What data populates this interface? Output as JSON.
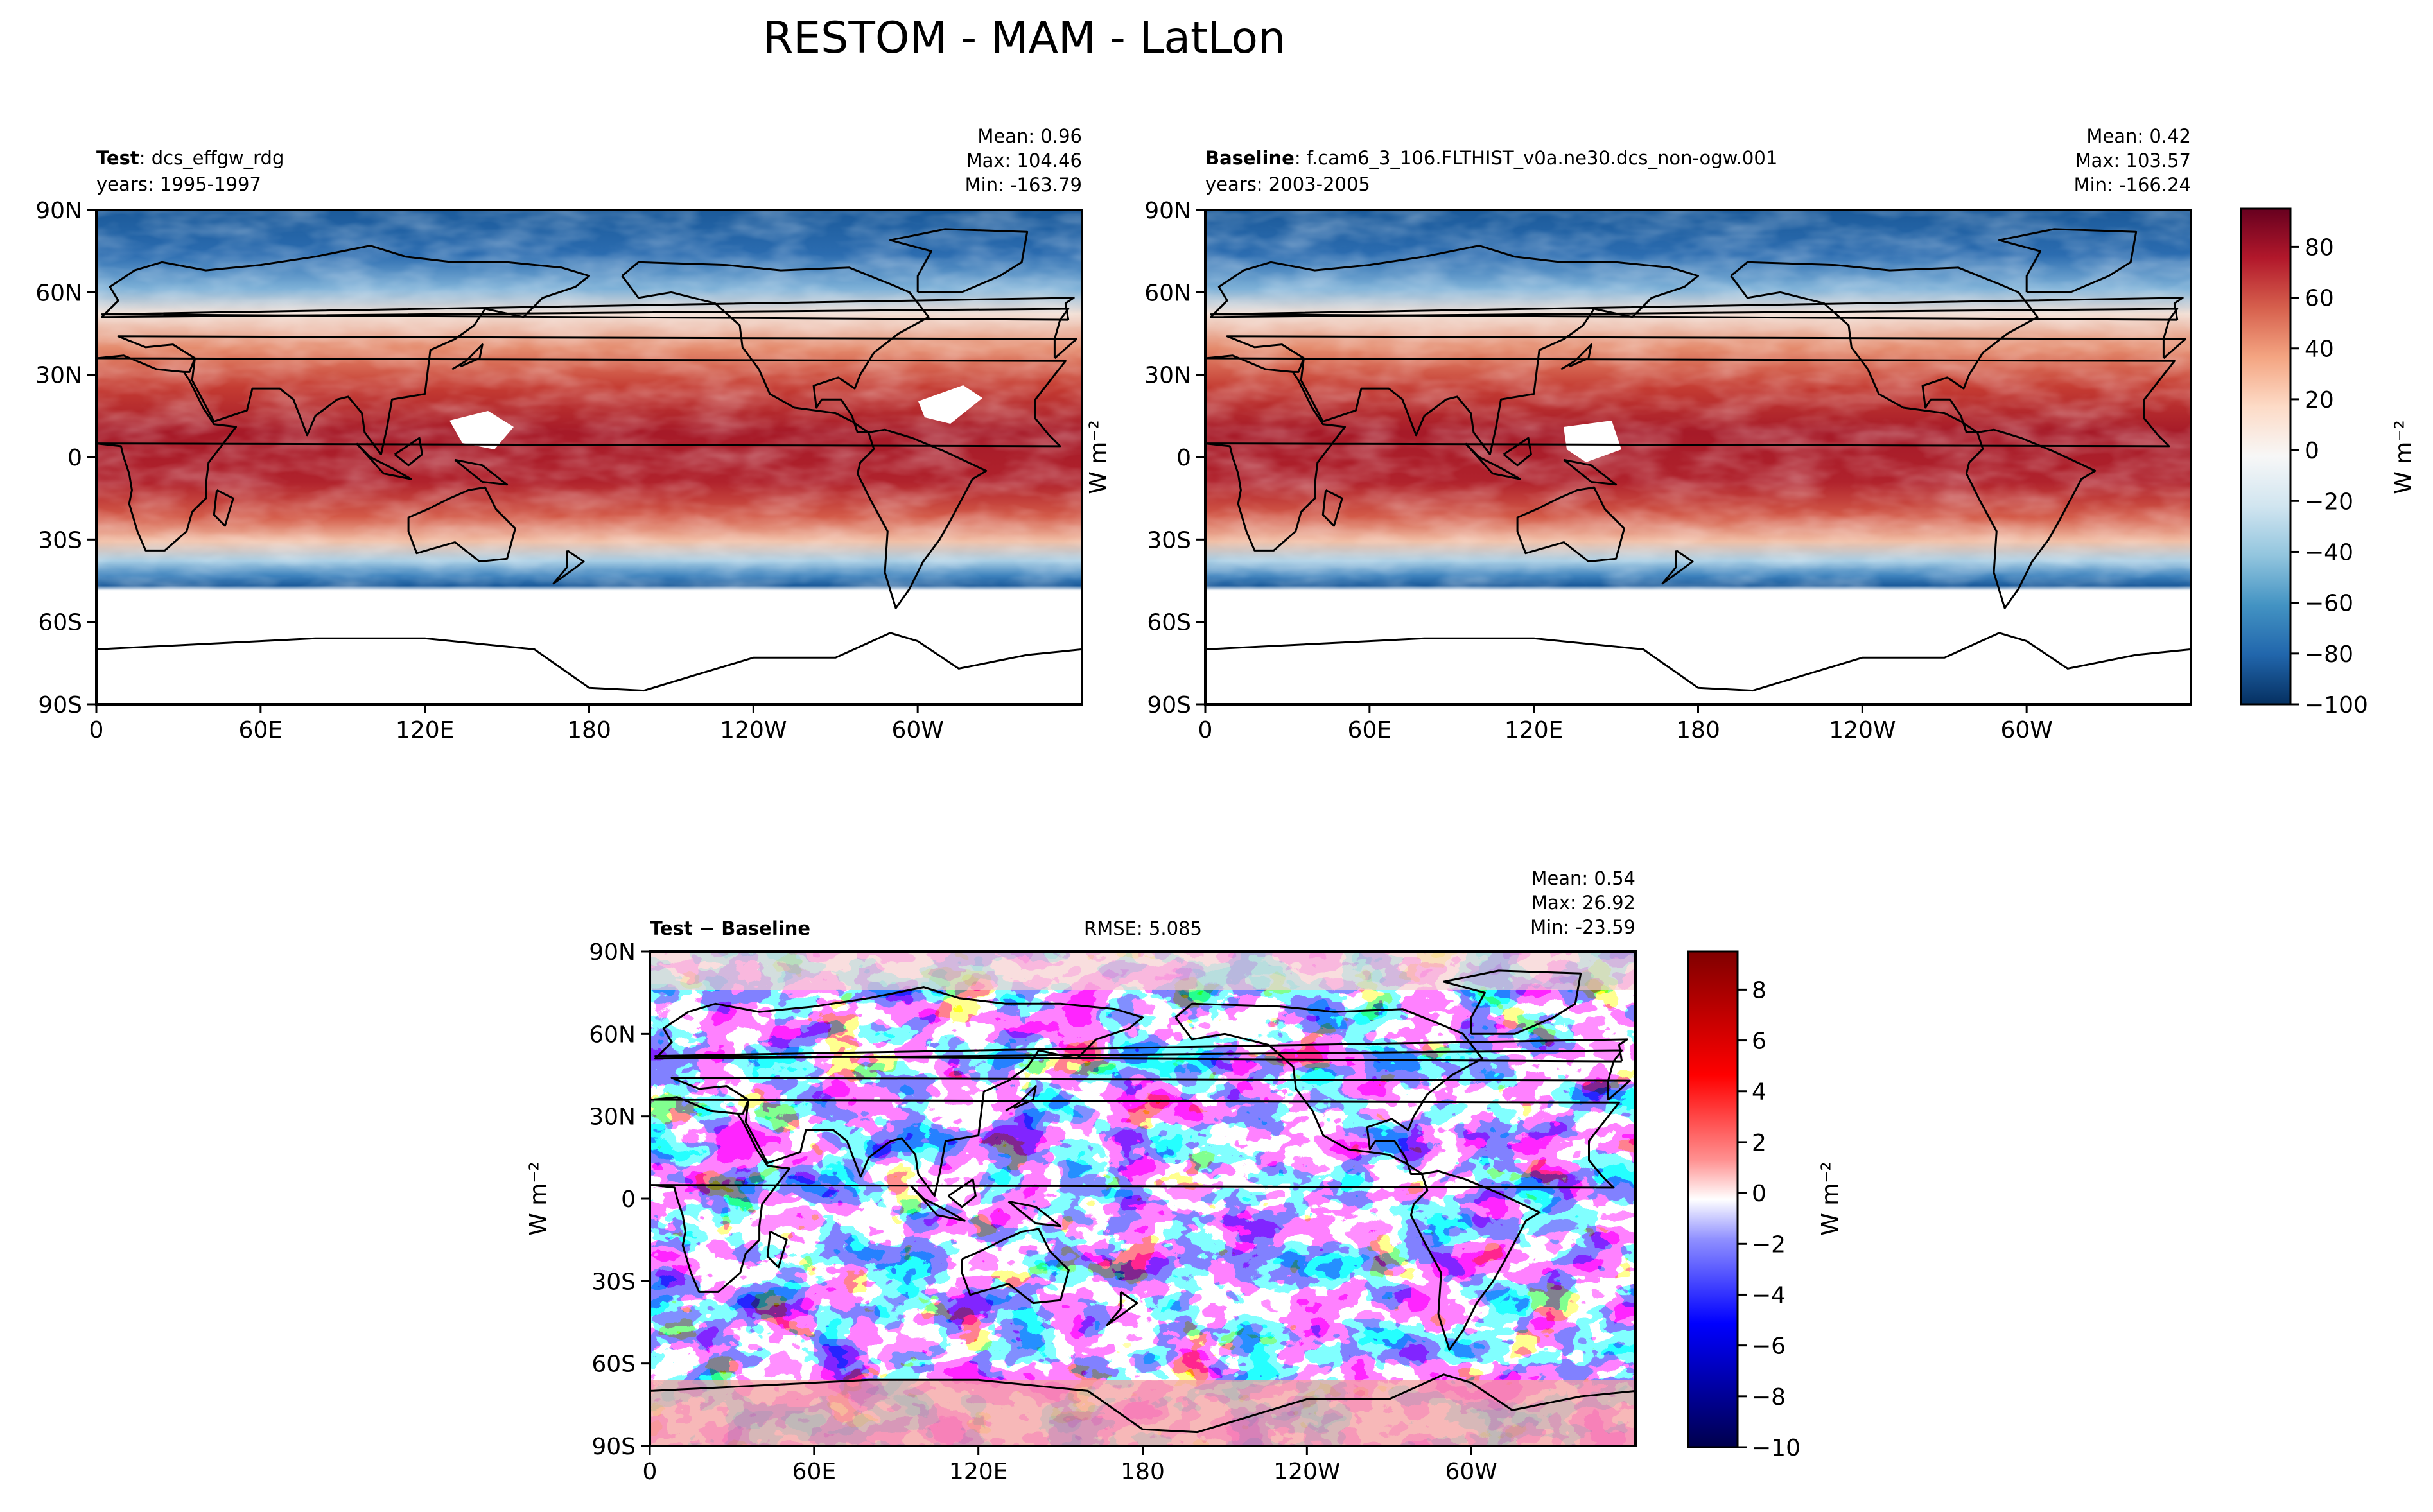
{
  "figure_title": "RESTOM - MAM - LatLon",
  "colors": {
    "rdbu": [
      "#67001f",
      "#b2182b",
      "#d6604d",
      "#f4a582",
      "#fddbc7",
      "#f7f7f7",
      "#d1e5f0",
      "#92c5de",
      "#4393c3",
      "#2166ac",
      "#053061"
    ],
    "seismic": [
      "#800000",
      "#ff0000",
      "#ff7070",
      "#ffffff",
      "#7070ff",
      "#0000ff",
      "#00004c"
    ],
    "land_outline": "#000000",
    "missing": "#ffffff"
  },
  "panels": {
    "test": {
      "label_bold": "Test",
      "label_rest": ": dcs_effgw_rdg",
      "years": "years: 1995-1997",
      "stats": [
        "Mean:  0.96",
        "Max: 104.46",
        "Min: -163.79"
      ]
    },
    "baseline": {
      "label_bold": "Baseline",
      "label_rest": ": f.cam6_3_106.FLTHIST_v0a.ne30.dcs_non-ogw.001",
      "years": "years: 2003-2005",
      "stats": [
        "Mean:  0.42",
        "Max: 103.57",
        "Min: -166.24"
      ]
    },
    "diff": {
      "label_bold": "Test − Baseline",
      "rmse": "RMSE: 5.085",
      "stats": [
        "Mean:  0.54",
        "Max: 26.92",
        "Min: -23.59"
      ]
    }
  },
  "units_label": "W m⁻²",
  "chart_data": [
    {
      "type": "heatmap",
      "name": "Test",
      "x_ticks": [
        "0",
        "60E",
        "120E",
        "180",
        "120W",
        "60W"
      ],
      "y_ticks": [
        "90N",
        "60N",
        "30N",
        "0",
        "30S",
        "60S",
        "90S"
      ],
      "xlim": [
        0,
        360
      ],
      "ylim": [
        -90,
        90
      ],
      "zlim": [
        -100,
        95
      ],
      "zonal_profile": {
        "lat": [
          80,
          60,
          45,
          30,
          15,
          0,
          -15,
          -30,
          -40,
          -47
        ],
        "value": [
          -85,
          -55,
          -10,
          40,
          70,
          80,
          70,
          20,
          -40,
          -80
        ]
      }
    },
    {
      "type": "heatmap",
      "name": "Baseline",
      "x_ticks": [
        "0",
        "60E",
        "120E",
        "180",
        "120W",
        "60W"
      ],
      "y_ticks": [
        "90N",
        "60N",
        "30N",
        "0",
        "30S",
        "60S",
        "90S"
      ],
      "xlim": [
        0,
        360
      ],
      "ylim": [
        -90,
        90
      ],
      "zlim": [
        -100,
        95
      ],
      "zonal_profile": {
        "lat": [
          80,
          60,
          45,
          30,
          15,
          0,
          -15,
          -30,
          -40,
          -47
        ],
        "value": [
          -85,
          -55,
          -10,
          40,
          70,
          80,
          70,
          20,
          -40,
          -80
        ]
      }
    },
    {
      "type": "heatmap",
      "name": "Test − Baseline",
      "x_ticks": [
        "0",
        "60E",
        "120E",
        "180",
        "120W",
        "60W"
      ],
      "y_ticks": [
        "90N",
        "60N",
        "30N",
        "0",
        "30S",
        "60S",
        "90S"
      ],
      "xlim": [
        0,
        360
      ],
      "ylim": [
        -90,
        90
      ],
      "zlim": [
        -10,
        9.5
      ],
      "stats": {
        "mean": 0.54,
        "max": 26.92,
        "min": -23.59,
        "rmse": 5.085
      }
    }
  ],
  "colorbars": {
    "main": {
      "ticks": [
        "80",
        "60",
        "40",
        "20",
        "0",
        "−20",
        "−40",
        "−60",
        "−80",
        "−100"
      ],
      "tick_values": [
        80,
        60,
        40,
        20,
        0,
        -20,
        -40,
        -60,
        -80,
        -100
      ],
      "min": -100,
      "max": 95
    },
    "diff": {
      "ticks": [
        "8",
        "6",
        "4",
        "2",
        "0",
        "−2",
        "−4",
        "−6",
        "−8",
        "−10"
      ],
      "tick_values": [
        8,
        6,
        4,
        2,
        0,
        -2,
        -4,
        -6,
        -8,
        -10
      ],
      "min": -10,
      "max": 9.5
    }
  }
}
